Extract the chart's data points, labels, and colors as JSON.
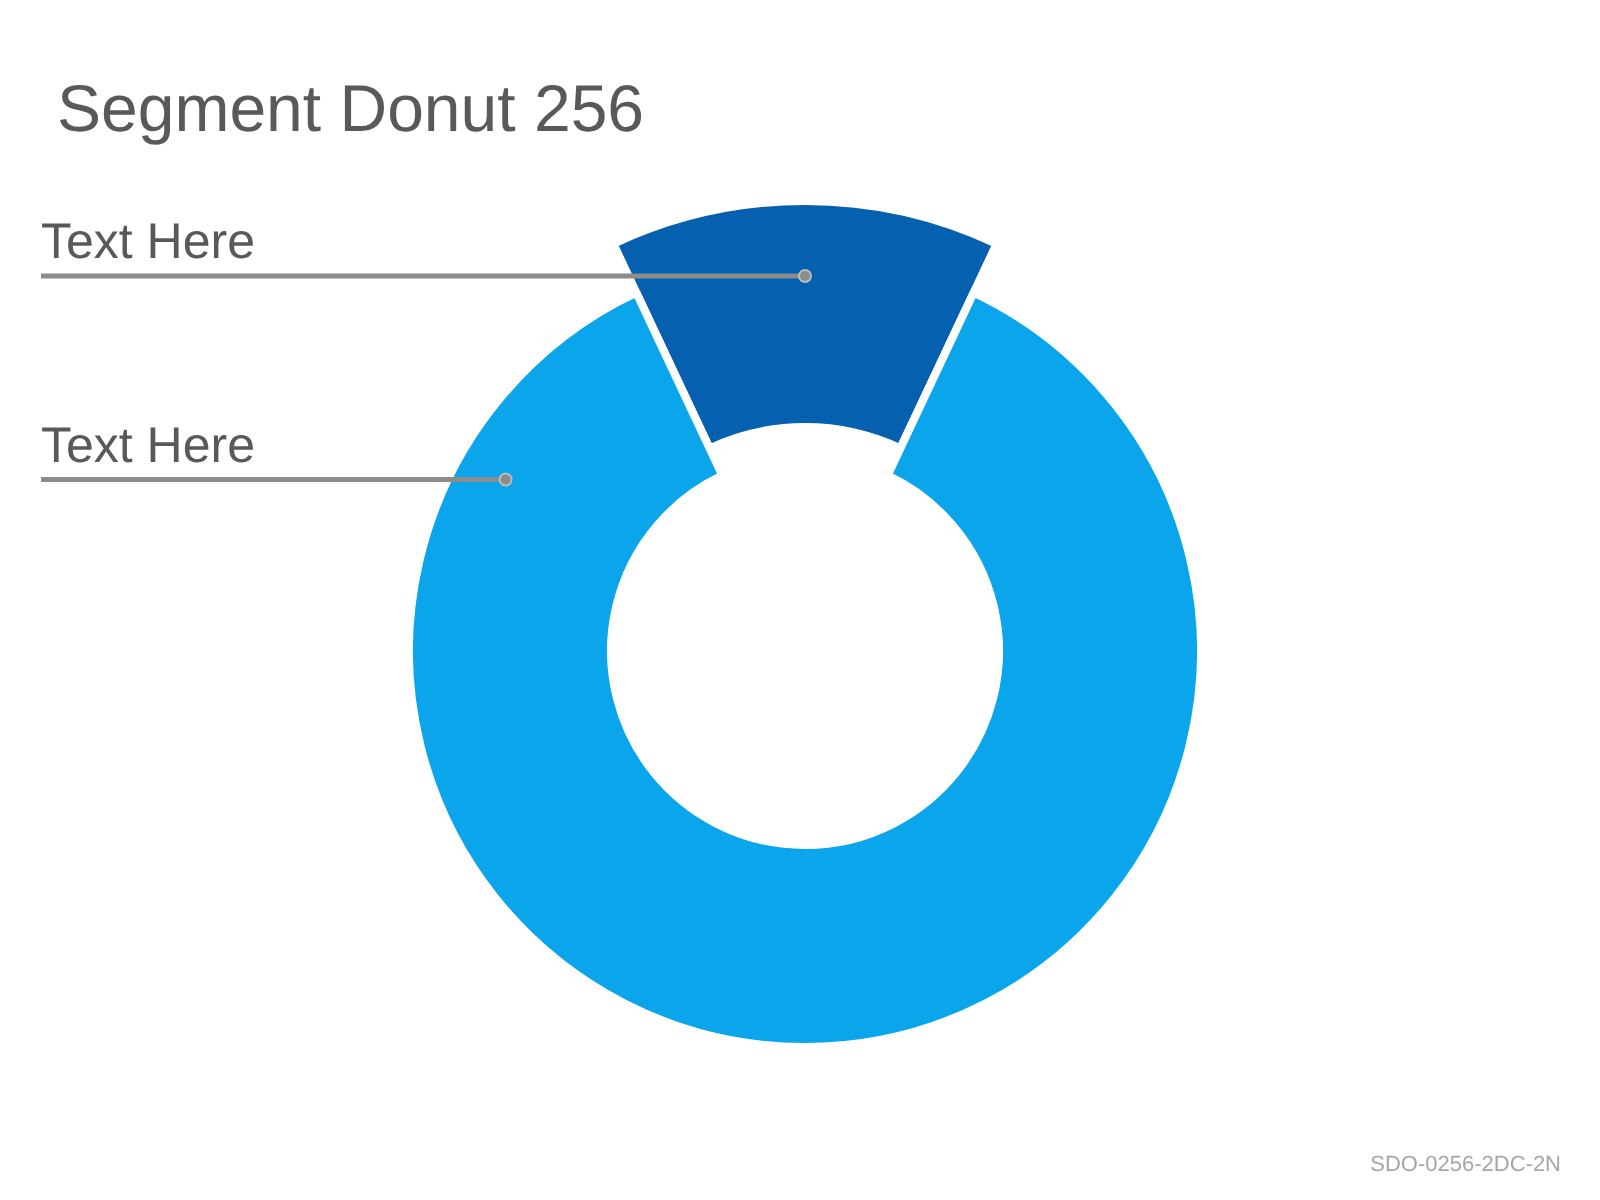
{
  "chart_data": {
    "type": "donut",
    "title": "Segment Donut 256",
    "categories": [
      "Text Here",
      "Text Here"
    ],
    "values": [
      14,
      86
    ],
    "colors": [
      "#0560b0",
      "#0aa5ea"
    ],
    "annotations": [
      "SDO-0256-2DC-2N"
    ]
  }
}
